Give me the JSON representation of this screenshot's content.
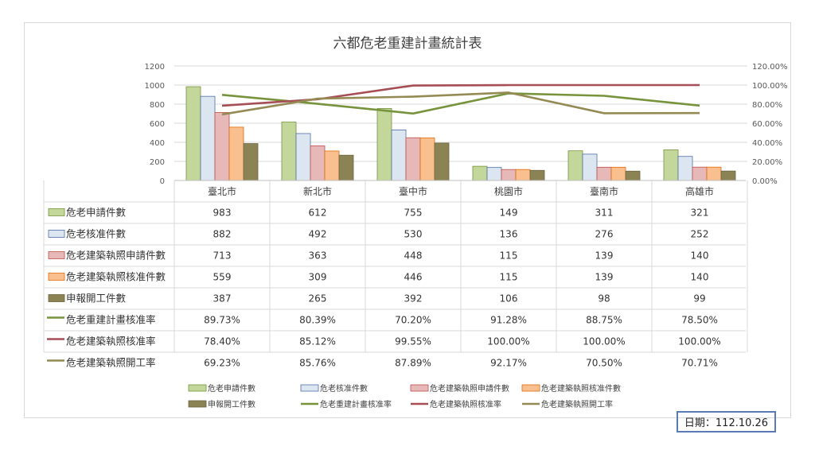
{
  "date_label": "日期：112.10.26",
  "colors": {
    "s1": "#c4d79b",
    "s1_stroke": "#76923c",
    "s2": "#dce6f1",
    "s2_stroke": "#4f6fa8",
    "s3": "#e6b8b7",
    "s3_stroke": "#c0504d",
    "s4": "#fabf8f",
    "s4_stroke": "#e26b0a",
    "s5": "#8b8354",
    "s5_stroke": "#6b6440",
    "l1": "#77933c",
    "l2": "#a64d55",
    "l3": "#948a54",
    "grid": "#d9d9d9",
    "frame": "#d9d9d9"
  },
  "chart_data": {
    "type": "bar",
    "title": "六都危老重建計畫統計表",
    "categories": [
      "臺北市",
      "新北市",
      "臺中市",
      "桃園市",
      "臺南市",
      "高雄市"
    ],
    "y_left": {
      "ylim": [
        0,
        1200
      ],
      "ticks": [
        "0",
        "200",
        "400",
        "600",
        "800",
        "1000",
        "1200"
      ]
    },
    "y_right": {
      "ylim": [
        0,
        120
      ],
      "ticks": [
        "0.00%",
        "20.00%",
        "40.00%",
        "60.00%",
        "80.00%",
        "100.00%",
        "120.00%"
      ]
    },
    "grid": true,
    "legend_position": "bottom",
    "bar_series": [
      {
        "name": "危老申請件數",
        "values": [
          983,
          612,
          755,
          149,
          311,
          321
        ]
      },
      {
        "name": "危老核准件數",
        "values": [
          882,
          492,
          530,
          136,
          276,
          252
        ]
      },
      {
        "name": "危老建築執照申請件數",
        "values": [
          713,
          363,
          448,
          115,
          139,
          140
        ]
      },
      {
        "name": "危老建築執照核准件數",
        "values": [
          559,
          309,
          446,
          115,
          139,
          140
        ]
      },
      {
        "name": "申報開工件數",
        "values": [
          387,
          265,
          392,
          106,
          98,
          99
        ]
      }
    ],
    "line_series": [
      {
        "name": "危老重建計畫核准率",
        "values": [
          89.73,
          80.39,
          70.2,
          91.28,
          88.75,
          78.5
        ],
        "labels": [
          "89.73%",
          "80.39%",
          "70.20%",
          "91.28%",
          "88.75%",
          "78.50%"
        ]
      },
      {
        "name": "危老建築執照核准率",
        "values": [
          78.4,
          85.12,
          99.55,
          100.0,
          100.0,
          100.0
        ],
        "labels": [
          "78.40%",
          "85.12%",
          "99.55%",
          "100.00%",
          "100.00%",
          "100.00%"
        ]
      },
      {
        "name": "危老建築執照開工率",
        "values": [
          69.23,
          85.76,
          87.89,
          92.17,
          70.5,
          70.71
        ],
        "labels": [
          "69.23%",
          "85.76%",
          "87.89%",
          "92.17%",
          "70.50%",
          "70.71%"
        ]
      }
    ]
  }
}
